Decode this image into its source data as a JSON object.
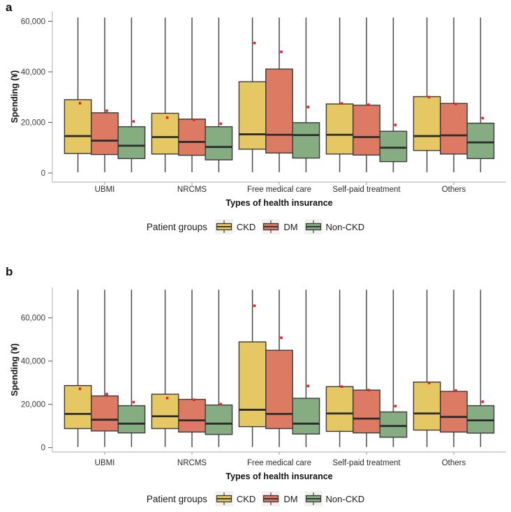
{
  "page": {
    "panels": [
      {
        "label": "a"
      },
      {
        "label": "b"
      }
    ]
  },
  "colors": {
    "ckd": "#e5c763",
    "dm": "#dc7a63",
    "non_ckd": "#86ad82",
    "box_border": "#3a3a3a",
    "median_line": "#2b2b2b",
    "mean_marker": "#e8211d",
    "axis_line": "#bcbcbc",
    "tick_mark": "#555555",
    "tick_label": "#3c3c3c",
    "axis_title": "#111111"
  },
  "chart_data": [
    {
      "type": "boxplot",
      "panel": "a",
      "ylabel": "Spending (¥)",
      "xlabel": "Types of health insurance",
      "legend_title": "Patient groups",
      "categories": [
        "UBMI",
        "NRCMS",
        "Free medical care",
        "Self-paid treatment",
        "Others"
      ],
      "yticks": [
        0,
        20000,
        40000,
        60000
      ],
      "ytick_labels": [
        "0",
        "20,000",
        "40,000",
        "60,000"
      ],
      "ylim": [
        0,
        63500
      ],
      "grid": false,
      "legend_position": "bottom",
      "series": [
        {
          "name": "CKD",
          "color": "#e5c763",
          "boxes": [
            {
              "whisker_low": 300,
              "q1": 7700,
              "median": 14600,
              "q3": 29000,
              "whisker_high": 61500,
              "mean": 27600
            },
            {
              "whisker_low": 300,
              "q1": 7500,
              "median": 14200,
              "q3": 23600,
              "whisker_high": 61500,
              "mean": 21900
            },
            {
              "whisker_low": 300,
              "q1": 9400,
              "median": 15300,
              "q3": 36100,
              "whisker_high": 61500,
              "mean": 51400
            },
            {
              "whisker_low": 300,
              "q1": 7500,
              "median": 15100,
              "q3": 27300,
              "whisker_high": 61500,
              "mean": 27500
            },
            {
              "whisker_low": 300,
              "q1": 8900,
              "median": 14600,
              "q3": 30200,
              "whisker_high": 61500,
              "mean": 30000
            }
          ]
        },
        {
          "name": "DM",
          "color": "#dc7a63",
          "boxes": [
            {
              "whisker_low": 300,
              "q1": 7300,
              "median": 12800,
              "q3": 23800,
              "whisker_high": 61500,
              "mean": 24600
            },
            {
              "whisker_low": 300,
              "q1": 7000,
              "median": 12300,
              "q3": 21300,
              "whisker_high": 61500,
              "mean": 21000
            },
            {
              "whisker_low": 300,
              "q1": 7900,
              "median": 15100,
              "q3": 41100,
              "whisker_high": 61500,
              "mean": 47900
            },
            {
              "whisker_low": 300,
              "q1": 7100,
              "median": 14200,
              "q3": 26800,
              "whisker_high": 61500,
              "mean": 27000
            },
            {
              "whisker_low": 300,
              "q1": 7500,
              "median": 14900,
              "q3": 27500,
              "whisker_high": 61500,
              "mean": 27300
            }
          ]
        },
        {
          "name": "Non-CKD",
          "color": "#86ad82",
          "boxes": [
            {
              "whisker_low": 300,
              "q1": 5700,
              "median": 10800,
              "q3": 18300,
              "whisker_high": 61500,
              "mean": 20400
            },
            {
              "whisker_low": 300,
              "q1": 5200,
              "median": 10300,
              "q3": 18300,
              "whisker_high": 61500,
              "mean": 19500
            },
            {
              "whisker_low": 300,
              "q1": 5900,
              "median": 15000,
              "q3": 19900,
              "whisker_high": 61500,
              "mean": 26100
            },
            {
              "whisker_low": 300,
              "q1": 4500,
              "median": 10000,
              "q3": 16500,
              "whisker_high": 61500,
              "mean": 19000
            },
            {
              "whisker_low": 300,
              "q1": 5700,
              "median": 12100,
              "q3": 19700,
              "whisker_high": 61500,
              "mean": 21700
            }
          ]
        }
      ]
    },
    {
      "type": "boxplot",
      "panel": "b",
      "ylabel": "Spending (¥)",
      "xlabel": "Types of health insurance",
      "legend_title": "Patient groups",
      "categories": [
        "UBMI",
        "NRCMS",
        "Free medical care",
        "Self-paid treatment",
        "Others"
      ],
      "yticks": [
        0,
        20000,
        40000,
        60000
      ],
      "ytick_labels": [
        "0",
        "20,000",
        "40,000",
        "60,000"
      ],
      "ylim": [
        0,
        75000
      ],
      "grid": false,
      "legend_position": "bottom",
      "series": [
        {
          "name": "CKD",
          "color": "#e5c763",
          "boxes": [
            {
              "whisker_low": 300,
              "q1": 8800,
              "median": 15600,
              "q3": 28700,
              "whisker_high": 73000,
              "mean": 27200
            },
            {
              "whisker_low": 300,
              "q1": 8800,
              "median": 14500,
              "q3": 24700,
              "whisker_high": 73000,
              "mean": 22900
            },
            {
              "whisker_low": 300,
              "q1": 9700,
              "median": 17500,
              "q3": 48900,
              "whisker_high": 73000,
              "mean": 65600
            },
            {
              "whisker_low": 300,
              "q1": 7500,
              "median": 15800,
              "q3": 28200,
              "whisker_high": 73000,
              "mean": 28200
            },
            {
              "whisker_low": 300,
              "q1": 8100,
              "median": 15800,
              "q3": 30300,
              "whisker_high": 73000,
              "mean": 29900
            }
          ]
        },
        {
          "name": "DM",
          "color": "#dc7a63",
          "boxes": [
            {
              "whisker_low": 300,
              "q1": 7700,
              "median": 12900,
              "q3": 23900,
              "whisker_high": 73000,
              "mean": 24700
            },
            {
              "whisker_low": 300,
              "q1": 7200,
              "median": 12600,
              "q3": 22300,
              "whisker_high": 73000,
              "mean": 22100
            },
            {
              "whisker_low": 300,
              "q1": 8800,
              "median": 15600,
              "q3": 45000,
              "whisker_high": 73000,
              "mean": 50800
            },
            {
              "whisker_low": 300,
              "q1": 6800,
              "median": 13400,
              "q3": 26600,
              "whisker_high": 73000,
              "mean": 26600
            },
            {
              "whisker_low": 300,
              "q1": 7200,
              "median": 14200,
              "q3": 26000,
              "whisker_high": 73000,
              "mean": 26400
            }
          ]
        },
        {
          "name": "Non-CKD",
          "color": "#86ad82",
          "boxes": [
            {
              "whisker_low": 300,
              "q1": 6800,
              "median": 11100,
              "q3": 19400,
              "whisker_high": 73000,
              "mean": 21000
            },
            {
              "whisker_low": 300,
              "q1": 6100,
              "median": 11100,
              "q3": 19700,
              "whisker_high": 73000,
              "mean": 20100
            },
            {
              "whisker_low": 300,
              "q1": 6300,
              "median": 11100,
              "q3": 22800,
              "whisker_high": 73000,
              "mean": 28500
            },
            {
              "whisker_low": 300,
              "q1": 4800,
              "median": 10000,
              "q3": 16500,
              "whisker_high": 73000,
              "mean": 19200
            },
            {
              "whisker_low": 300,
              "q1": 6700,
              "median": 12600,
              "q3": 19400,
              "whisker_high": 73000,
              "mean": 21200
            }
          ]
        }
      ]
    }
  ]
}
